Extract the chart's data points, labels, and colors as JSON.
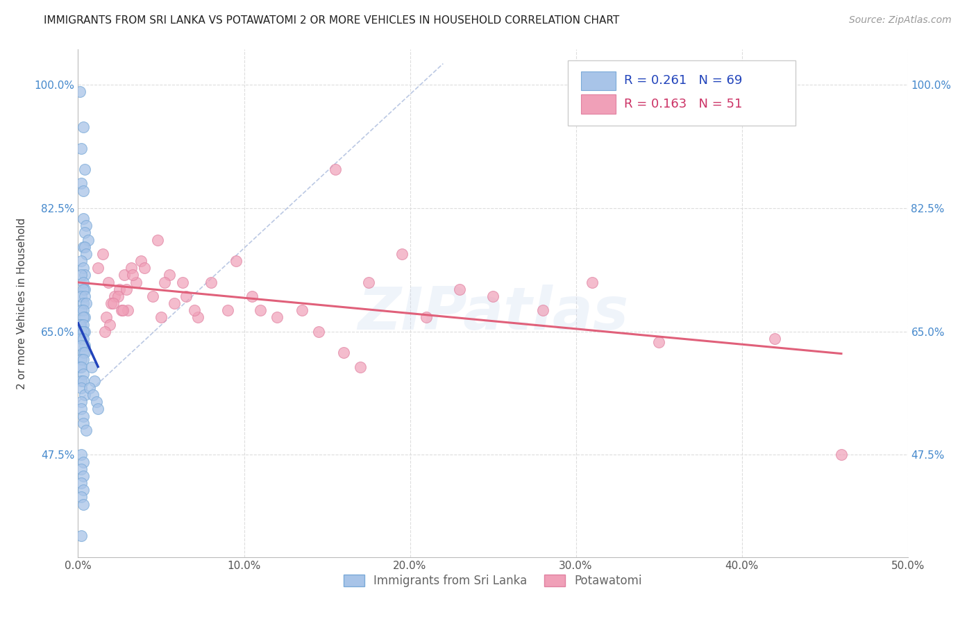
{
  "title": "IMMIGRANTS FROM SRI LANKA VS POTAWATOMI 2 OR MORE VEHICLES IN HOUSEHOLD CORRELATION CHART",
  "source": "Source: ZipAtlas.com",
  "ylabel": "2 or more Vehicles in Household",
  "xlim": [
    0.0,
    0.5
  ],
  "ylim": [
    0.33,
    1.05
  ],
  "xtick_labels": [
    "0.0%",
    "10.0%",
    "20.0%",
    "30.0%",
    "40.0%",
    "50.0%"
  ],
  "xtick_vals": [
    0.0,
    0.1,
    0.2,
    0.3,
    0.4,
    0.5
  ],
  "ytick_labels": [
    "47.5%",
    "65.0%",
    "82.5%",
    "100.0%"
  ],
  "ytick_vals": [
    0.475,
    0.65,
    0.825,
    1.0
  ],
  "legend_blue_r": "0.261",
  "legend_blue_n": "69",
  "legend_pink_r": "0.163",
  "legend_pink_n": "51",
  "legend_label_blue": "Immigrants from Sri Lanka",
  "legend_label_pink": "Potawatomi",
  "blue_dot_color": "#a8c4e8",
  "blue_edge_color": "#7aaad8",
  "pink_dot_color": "#f0a0b8",
  "pink_edge_color": "#e080a0",
  "trendline_blue_color": "#2244bb",
  "trendline_pink_color": "#e0607a",
  "diag_color": "#aabbdd",
  "watermark_text": "ZIPatlas",
  "watermark_color": "#c8d8f0",
  "grid_color": "#dddddd",
  "title_color": "#222222",
  "source_color": "#999999",
  "ytick_color": "#4488cc",
  "xtick_color": "#555555",
  "legend_text_blue_color": "#2244bb",
  "legend_text_pink_color": "#cc3366",
  "legend_n_color": "#cc3333",
  "bottom_legend_color": "#666666"
}
